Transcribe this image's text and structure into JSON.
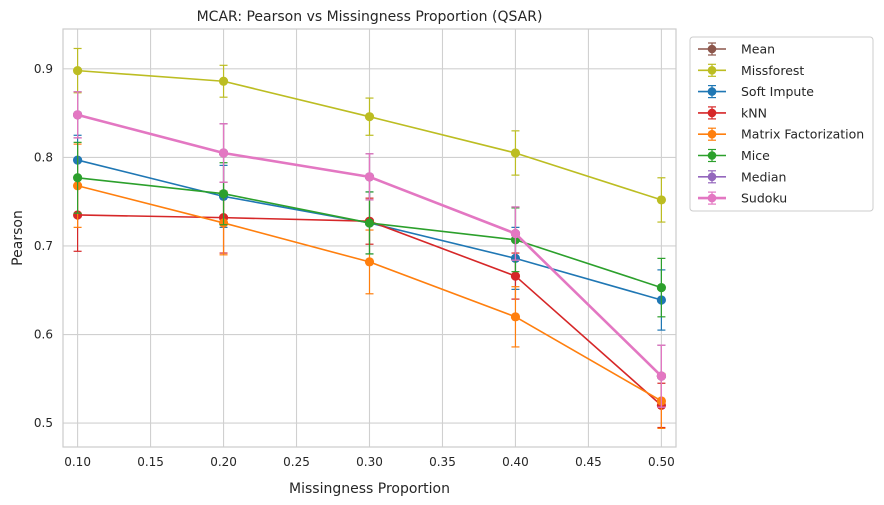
{
  "chart_data": {
    "type": "line",
    "title": "MCAR: Pearson vs Missingness Proportion (QSAR)",
    "xlabel": "Missingness Proportion",
    "ylabel": "Pearson",
    "x": [
      0.1,
      0.2,
      0.3,
      0.4,
      0.5
    ],
    "xlim": [
      0.09,
      0.51
    ],
    "ylim": [
      0.473,
      0.945
    ],
    "xticks": [
      0.1,
      0.15,
      0.2,
      0.25,
      0.3,
      0.35,
      0.4,
      0.45,
      0.5
    ],
    "xtick_labels": [
      "0.10",
      "0.15",
      "0.20",
      "0.25",
      "0.30",
      "0.35",
      "0.40",
      "0.45",
      "0.50"
    ],
    "yticks": [
      0.5,
      0.6,
      0.7,
      0.8,
      0.9
    ],
    "ytick_labels": [
      "0.5",
      "0.6",
      "0.7",
      "0.8",
      "0.9"
    ],
    "grid": true,
    "legend_position": "outside-right-top",
    "series": [
      {
        "name": "Mean",
        "color": "#8c564b",
        "values": [
          0.848,
          0.805,
          0.778,
          0.714,
          0.553
        ],
        "errors": [
          0.026,
          0.033,
          0.026,
          0.03,
          0.035
        ]
      },
      {
        "name": "Missforest",
        "color": "#bcbd22",
        "values": [
          0.898,
          0.886,
          0.846,
          0.805,
          0.752
        ],
        "errors": [
          0.025,
          0.018,
          0.021,
          0.025,
          0.025
        ]
      },
      {
        "name": "Soft Impute",
        "color": "#1f77b4",
        "values": [
          0.797,
          0.756,
          0.726,
          0.686,
          0.639
        ],
        "errors": [
          0.028,
          0.035,
          0.035,
          0.035,
          0.034
        ]
      },
      {
        "name": "kNN",
        "color": "#d62728",
        "values": [
          0.735,
          0.732,
          0.728,
          0.666,
          0.52
        ],
        "errors": [
          0.041,
          0.04,
          0.026,
          0.026,
          0.025
        ]
      },
      {
        "name": "Matrix Factorization",
        "color": "#ff7f0e",
        "values": [
          0.768,
          0.726,
          0.682,
          0.62,
          0.525
        ],
        "errors": [
          0.047,
          0.036,
          0.036,
          0.034,
          0.031
        ]
      },
      {
        "name": "Mice",
        "color": "#2ca02c",
        "values": [
          0.777,
          0.759,
          0.726,
          0.707,
          0.653
        ],
        "errors": [
          0.04,
          0.035,
          0.035,
          0.036,
          0.033
        ]
      },
      {
        "name": "Median",
        "color": "#9467bd",
        "values": [
          0.848,
          0.805,
          0.778,
          0.714,
          0.553
        ],
        "errors": [
          0.026,
          0.033,
          0.026,
          0.03,
          0.035
        ]
      },
      {
        "name": "Sudoku",
        "color": "#e377c2",
        "values": [
          0.848,
          0.805,
          0.778,
          0.714,
          0.553
        ],
        "errors": [
          0.026,
          0.033,
          0.026,
          0.03,
          0.035
        ],
        "thick": true
      }
    ]
  }
}
